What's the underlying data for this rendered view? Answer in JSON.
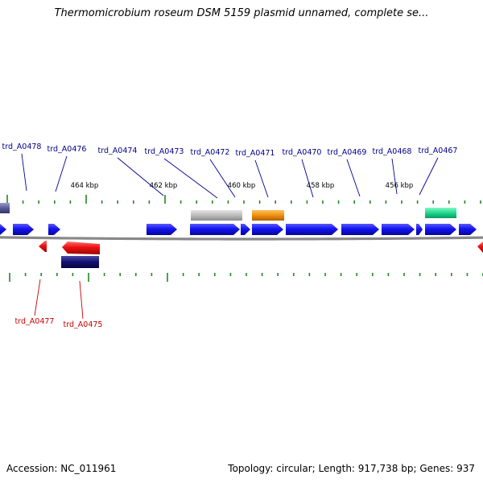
{
  "title": "Thermomicrobium roseum DSM 5159 plasmid unnamed, complete se...",
  "footer": {
    "accession": "Accession: NC_011961",
    "summary": "Topology: circular; Length: 917,738 bp; Genes: 937"
  },
  "colors": {
    "backbone": "#888888",
    "cds_forward": "#1010ee",
    "cds_reverse": "#ee1010",
    "tick": "#228822",
    "label_forward": "#00008b",
    "label_reverse": "#cc0000",
    "feature_navy": "#10106e",
    "feature_slate": "#5a5a9a",
    "feature_gray": "#b8b8b8",
    "feature_orange": "#f0900f",
    "feature_teal": "#20d890"
  },
  "scale_labels": [
    "464 kbp",
    "462 kbp",
    "460 kbp",
    "458 kbp",
    "456 kbp"
  ],
  "forward_genes": [
    "trd_A0478",
    "trd_A0476",
    "trd_A0474",
    "trd_A0473",
    "trd_A0472",
    "trd_A0471",
    "trd_A0470",
    "trd_A0469",
    "trd_A0468",
    "trd_A0467"
  ],
  "reverse_genes": [
    "trd_A0477",
    "trd_A0475"
  ]
}
